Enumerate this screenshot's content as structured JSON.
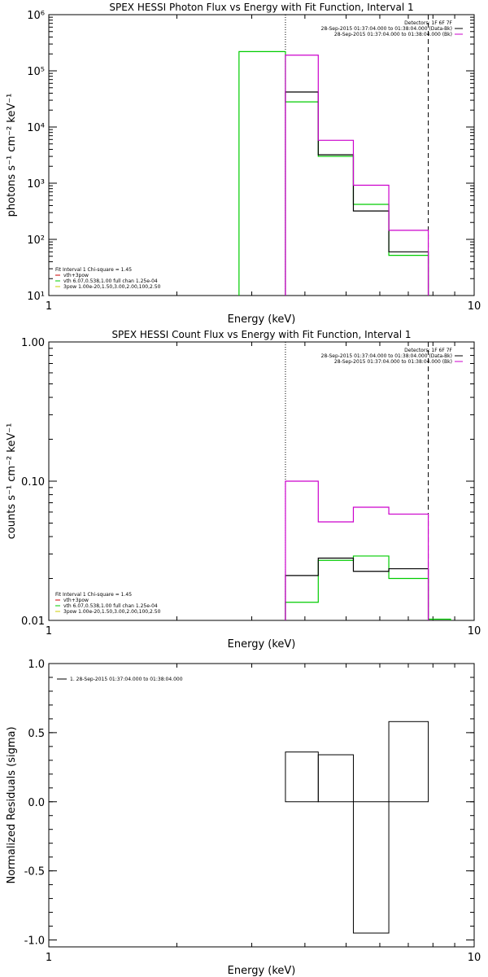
{
  "chart_data": [
    {
      "type": "line",
      "title": "SPEX HESSI Photon Flux vs Energy with Fit Function, Interval 1",
      "xlabel": "Energy (keV)",
      "ylabel": "photons s⁻¹ cm⁻² keV⁻¹",
      "xscale": "log",
      "yscale": "log",
      "xlim": [
        1,
        10
      ],
      "ylim": [
        10,
        1000000
      ],
      "xticks": [
        {
          "v": 1,
          "label": "1"
        },
        {
          "v": 10,
          "label": "10"
        }
      ],
      "yticks": [
        {
          "v": 10,
          "label": "10¹"
        },
        {
          "v": 100,
          "label": "10²"
        },
        {
          "v": 1000,
          "label": "10³"
        },
        {
          "v": 10000,
          "label": "10⁴"
        },
        {
          "v": 100000,
          "label": "10⁵"
        },
        {
          "v": 1000000,
          "label": "10⁶"
        }
      ],
      "vlines": [
        {
          "x": 3.6,
          "style": "dotted",
          "color": "#000000"
        },
        {
          "x": 7.8,
          "style": "dashed",
          "color": "#000000"
        }
      ],
      "legend_top_right": [
        {
          "text": "Detectors: 1F 6F 7F",
          "color": null
        },
        {
          "text": "28-Sep-2015 01:37:04.000 to 01:38:04.000 (Data-Bk)",
          "color": "#000000"
        },
        {
          "text": "28-Sep-2015 01:37:04.000 to 01:38:04.000 (Bk)",
          "color": "#cc00cc"
        }
      ],
      "legend_bottom_left": [
        {
          "text": "Fit Interval 1    Chi-square = 1.45",
          "color": null
        },
        {
          "text": "vth+3pow",
          "color": "#cc0000"
        },
        {
          "text": "vth 6.07,0.538,1.00  full chan 1.25e-04",
          "color": "#00cc00"
        },
        {
          "text": "3pow 1.00e-20,1.50,3.00,2.00,100,2.50",
          "color": "#cccc00"
        }
      ],
      "series": [
        {
          "color": "#00cc00",
          "edges": [
            2.8,
            3.6,
            4.3,
            5.2,
            6.3,
            7.8
          ],
          "values": [
            220000,
            28000,
            3000,
            420,
            52
          ]
        },
        {
          "color": "#000000",
          "edges": [
            3.6,
            4.3,
            5.2,
            6.3,
            7.8
          ],
          "values": [
            42000,
            3200,
            320,
            60
          ]
        },
        {
          "color": "#cc00cc",
          "edges": [
            3.6,
            4.3,
            5.2,
            6.3,
            7.8
          ],
          "values": [
            190000,
            5800,
            920,
            145
          ]
        }
      ]
    },
    {
      "type": "line",
      "title": "SPEX HESSI Count Flux vs Energy with Fit Function, Interval 1",
      "xlabel": "Energy (keV)",
      "ylabel": "counts s⁻¹ cm⁻² keV⁻¹",
      "xscale": "log",
      "yscale": "log",
      "xlim": [
        1,
        10
      ],
      "ylim": [
        0.01,
        1.0
      ],
      "xticks": [
        {
          "v": 1,
          "label": "1"
        },
        {
          "v": 10,
          "label": "10"
        }
      ],
      "yticks": [
        {
          "v": 0.01,
          "label": "0.01"
        },
        {
          "v": 0.1,
          "label": "0.10"
        },
        {
          "v": 1.0,
          "label": "1.00"
        }
      ],
      "vlines": [
        {
          "x": 3.6,
          "style": "dotted",
          "color": "#000000"
        },
        {
          "x": 7.8,
          "style": "dashed",
          "color": "#000000"
        }
      ],
      "legend_top_right": [
        {
          "text": "Detectors: 1F 6F 7F",
          "color": null
        },
        {
          "text": "28-Sep-2015 01:37:04.000 to 01:38:04.000 (Data-Bk)",
          "color": "#000000"
        },
        {
          "text": "28-Sep-2015 01:37:04.000 to 01:38:04.000 (Bk)",
          "color": "#cc00cc"
        }
      ],
      "legend_bottom_left": [
        {
          "text": "Fit Interval 1    Chi-square = 1.45",
          "color": null
        },
        {
          "text": "vth+3pow",
          "color": "#cc0000"
        },
        {
          "text": "vth 6.07,0.538,1.00  full chan 1.25e-04",
          "color": "#00cc00"
        },
        {
          "text": "3pow 1.00e-20,1.50,3.00,2.00,100,2.50",
          "color": "#cccc00"
        }
      ],
      "series": [
        {
          "color": "#00cc00",
          "edges": [
            3.6,
            4.3,
            5.2,
            6.3,
            7.8,
            8.8
          ],
          "values": [
            0.0135,
            0.027,
            0.029,
            0.02,
            0.0102
          ]
        },
        {
          "color": "#000000",
          "edges": [
            3.6,
            4.3,
            5.2,
            6.3,
            7.8
          ],
          "values": [
            0.021,
            0.028,
            0.0225,
            0.0235
          ]
        },
        {
          "color": "#cc00cc",
          "edges": [
            3.6,
            4.3,
            5.2,
            6.3,
            7.8
          ],
          "values": [
            0.1,
            0.051,
            0.065,
            0.058
          ]
        }
      ]
    },
    {
      "type": "bar",
      "title": "",
      "xlabel": "Energy (keV)",
      "ylabel": "Normalized Residuals (sigma)",
      "xscale": "log",
      "yscale": "linear",
      "xlim": [
        1,
        10
      ],
      "ylim": [
        -1.05,
        1.0
      ],
      "xticks": [
        {
          "v": 1,
          "label": "1"
        },
        {
          "v": 10,
          "label": "10"
        }
      ],
      "yticks": [
        {
          "v": -1.0,
          "label": "-1.0"
        },
        {
          "v": -0.5,
          "label": "-0.5"
        },
        {
          "v": 0.0,
          "label": "0.0"
        },
        {
          "v": 0.5,
          "label": "0.5"
        },
        {
          "v": 1.0,
          "label": "1.0"
        }
      ],
      "vlines": [],
      "legend_top_right": [],
      "legend_bottom_left": [],
      "legend_top_left": [
        {
          "text": "1. 28-Sep-2015 01:37:04.000 to 01:38:04.000",
          "color": "#000000"
        }
      ],
      "residuals": {
        "color": "#000000",
        "edges": [
          3.6,
          4.3,
          5.2,
          6.3,
          7.8
        ],
        "values": [
          0.36,
          0.34,
          -0.95,
          0.58
        ]
      }
    }
  ]
}
